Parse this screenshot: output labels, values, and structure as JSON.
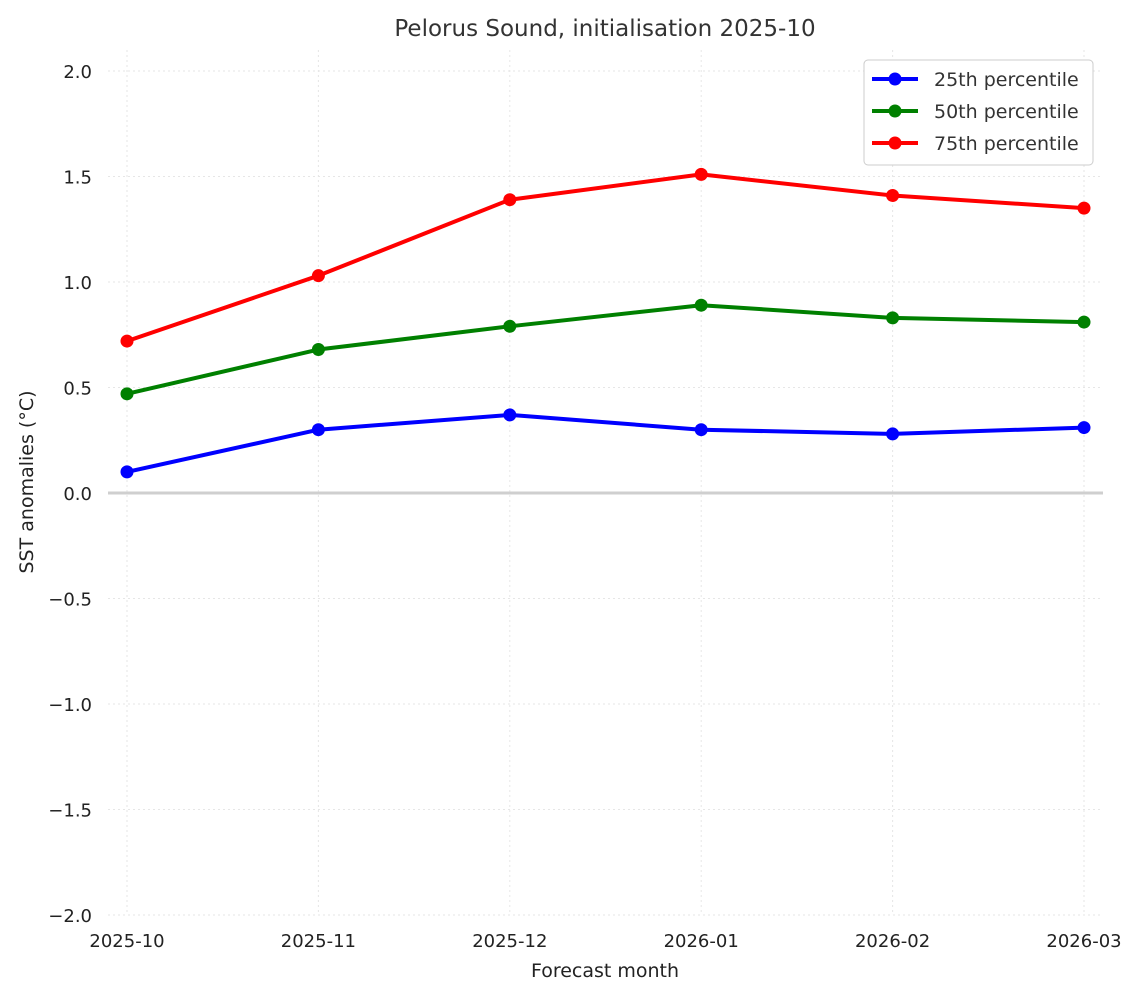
{
  "chart_data": {
    "type": "line",
    "title": "Pelorus Sound, initialisation 2025-10",
    "xlabel": "Forecast month",
    "ylabel": "SST anomalies (°C)",
    "x": [
      "2025-10",
      "2025-11",
      "2025-12",
      "2026-01",
      "2026-02",
      "2026-03"
    ],
    "ylim": [
      -2.0,
      2.0
    ],
    "yticks": [
      "−2.0",
      "−1.5",
      "−1.0",
      "−0.5",
      "0.0",
      "0.5",
      "1.0",
      "1.5",
      "2.0"
    ],
    "ytick_values": [
      -2.0,
      -1.5,
      -1.0,
      -0.5,
      0.0,
      0.5,
      1.0,
      1.5,
      2.0
    ],
    "grid": true,
    "legend_position": "top-right",
    "series": [
      {
        "name": "25th percentile",
        "color": "#0000ff",
        "values": [
          0.1,
          0.3,
          0.37,
          0.3,
          0.28,
          0.31
        ]
      },
      {
        "name": "50th percentile",
        "color": "#008000",
        "values": [
          0.47,
          0.68,
          0.79,
          0.89,
          0.83,
          0.81
        ]
      },
      {
        "name": "75th percentile",
        "color": "#ff0000",
        "values": [
          0.72,
          1.03,
          1.39,
          1.51,
          1.41,
          1.35
        ]
      }
    ]
  }
}
